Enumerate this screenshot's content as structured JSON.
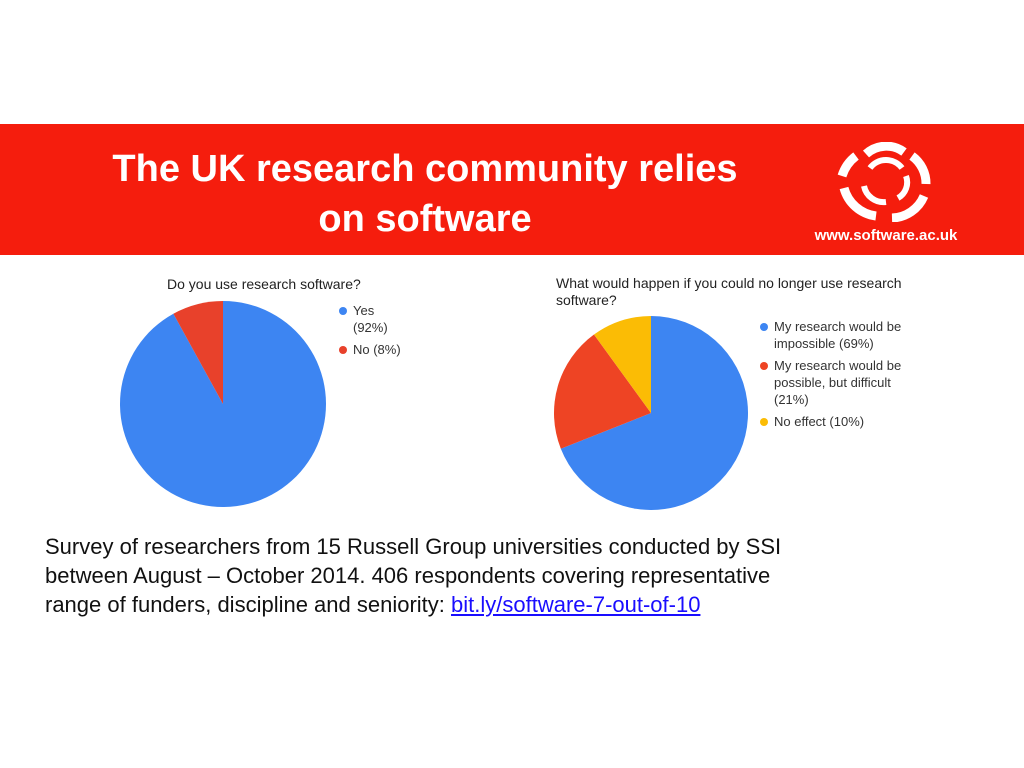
{
  "banner": {
    "title_line1": "The UK research community relies",
    "title_line2": "on software",
    "url": "www.software.ac.uk",
    "background_color": "#f51d0d"
  },
  "chart_data": [
    {
      "type": "pie",
      "title": "Do you use research software?",
      "slices": [
        {
          "label_line1": "Yes",
          "label_line2": "(92%)",
          "value": 92,
          "color": "#3d85f2"
        },
        {
          "label_line1": "No (8%)",
          "label_line2": "",
          "value": 8,
          "color": "#e8412b"
        }
      ],
      "legend_position": "right"
    },
    {
      "type": "pie",
      "title_line1": "What would happen if you could no longer use research",
      "title_line2": "software?",
      "slices": [
        {
          "label_line1": "My research would be",
          "label_line2": "impossible (69%)",
          "label_line3": "",
          "value": 69,
          "color": "#3d85f2"
        },
        {
          "label_line1": "My research would be",
          "label_line2": "possible, but difficult",
          "label_line3": "(21%)",
          "value": 21,
          "color": "#ee4424"
        },
        {
          "label_line1": "No effect (10%)",
          "label_line2": "",
          "label_line3": "",
          "value": 10,
          "color": "#fbbc05"
        }
      ],
      "legend_position": "right"
    }
  ],
  "caption": {
    "line1": "Survey of researchers from 15 Russell Group universities conducted by SSI",
    "line2": "between August – October 2014. 406 respondents covering representative",
    "line3": "range of funders, discipline and seniority: ",
    "link_text": "bit.ly/software-7-out-of-10",
    "link_color": "#1a0dff"
  }
}
